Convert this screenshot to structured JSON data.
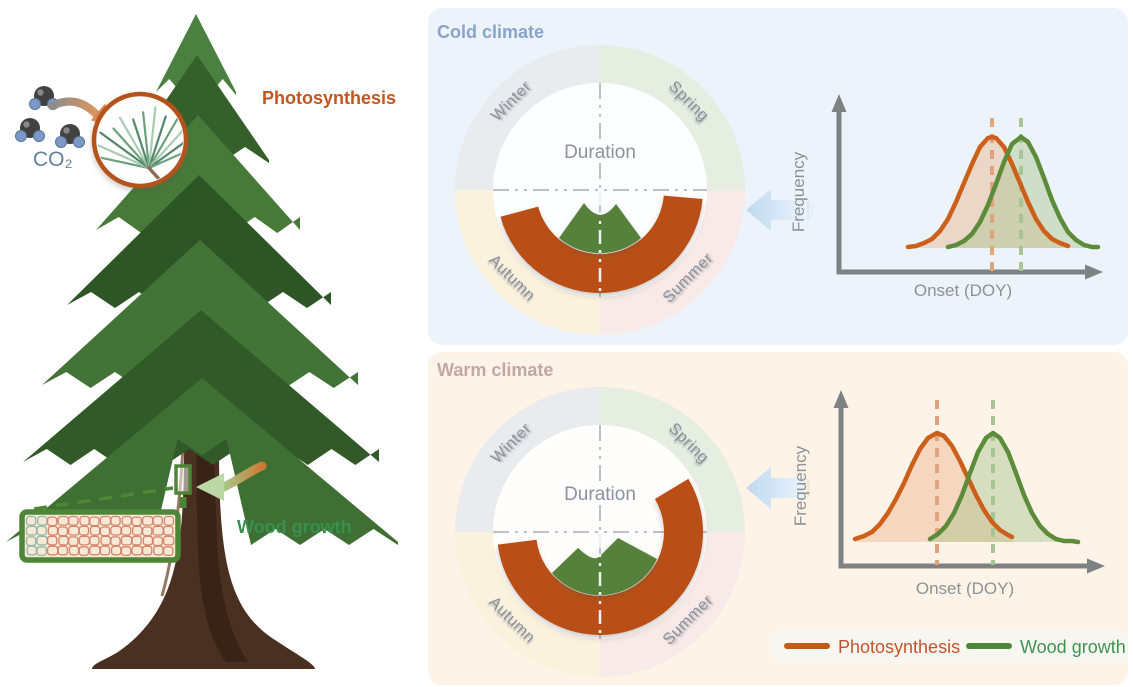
{
  "scene": {
    "co2_label": "CO₂",
    "photosynthesis_label": "Photosynthesis",
    "wood_growth_label": "Wood growth"
  },
  "panels": {
    "cold": {
      "title": "Cold climate",
      "title_color": "#87A4CB",
      "bg_color": "#EDF3FA",
      "wheel": {
        "center_label": "Duration",
        "seasons": [
          {
            "label": "Winter",
            "color": "#E9EBEE"
          },
          {
            "label": "Spring",
            "color": "#E6EEE2"
          },
          {
            "label": "Summer",
            "color": "#F8EAE8"
          },
          {
            "label": "Autumn",
            "color": "#FBF2DE"
          }
        ],
        "photosynthesis_arc_deg_screen": [
          5,
          165
        ],
        "wood_growth_mound_deg_screen": [
          50,
          130
        ]
      },
      "plot": {
        "ylabel": "Frequency",
        "xlabel": "Onset (DOY)"
      }
    },
    "warm": {
      "title": "Warm climate",
      "title_color": "#C3A7A3",
      "bg_color": "#FDF3E7",
      "wheel": {
        "center_label": "Duration",
        "seasons": [
          {
            "label": "Winter",
            "color": "#E9EBEE"
          },
          {
            "label": "Spring",
            "color": "#E6EEE2"
          },
          {
            "label": "Summer",
            "color": "#F8EAE8"
          },
          {
            "label": "Autumn",
            "color": "#FBF2DE"
          }
        ],
        "photosynthesis_arc_deg_screen": [
          -31,
          173
        ],
        "wood_growth_mound_deg_screen": [
          25,
          140
        ]
      },
      "plot": {
        "ylabel": "Frequency",
        "xlabel": "Onset (DOY)"
      }
    }
  },
  "legend": {
    "items": [
      {
        "label": "Photosynthesis",
        "line_color": "#C05A15",
        "text_color": "#C4552B"
      },
      {
        "label": "Wood growth",
        "line_color": "#4E8639",
        "text_color": "#3F9352"
      }
    ]
  },
  "colors": {
    "photosynthesis_orange": "#B94F14",
    "wood_growth_green": "#54813A",
    "axis_gray": "#7F8285",
    "blue_link_arrow": "#C3DCF1",
    "co2_text": "#64819F",
    "magnifier_ring": "#B5531C"
  },
  "chart_data": [
    {
      "type": "area",
      "panel": "Cold climate",
      "title": "Onset distributions (cold climate)",
      "xlabel": "Onset (DOY)",
      "ylabel": "Frequency",
      "axes_numeric_labels": false,
      "series": [
        {
          "name": "Photosynthesis",
          "color": "#CC5F1A",
          "peak_x_frac": 0.58,
          "sigma_frac": 0.1,
          "peak_marked_by": "orange dashed vertical line"
        },
        {
          "name": "Wood growth",
          "color": "#5C8B3A",
          "peak_x_frac": 0.69,
          "sigma_frac": 0.09,
          "peak_marked_by": "green dashed vertical line"
        }
      ],
      "annotation": "bell curves strongly overlapping; wood-growth onset slightly later than photosynthesis onset"
    },
    {
      "type": "area",
      "panel": "Warm climate",
      "title": "Onset distributions (warm climate)",
      "xlabel": "Onset (DOY)",
      "ylabel": "Frequency",
      "axes_numeric_labels": false,
      "series": [
        {
          "name": "Photosynthesis",
          "color": "#CC5F1A",
          "peak_x_frac": 0.37,
          "sigma_frac": 0.11,
          "peak_marked_by": "orange dashed vertical line"
        },
        {
          "name": "Wood growth",
          "color": "#5C8B3A",
          "peak_x_frac": 0.58,
          "sigma_frac": 0.09,
          "peak_marked_by": "green dashed vertical line"
        }
      ],
      "annotation": "bell curves clearly separated; wood-growth onset much later than photosynthesis onset"
    }
  ]
}
